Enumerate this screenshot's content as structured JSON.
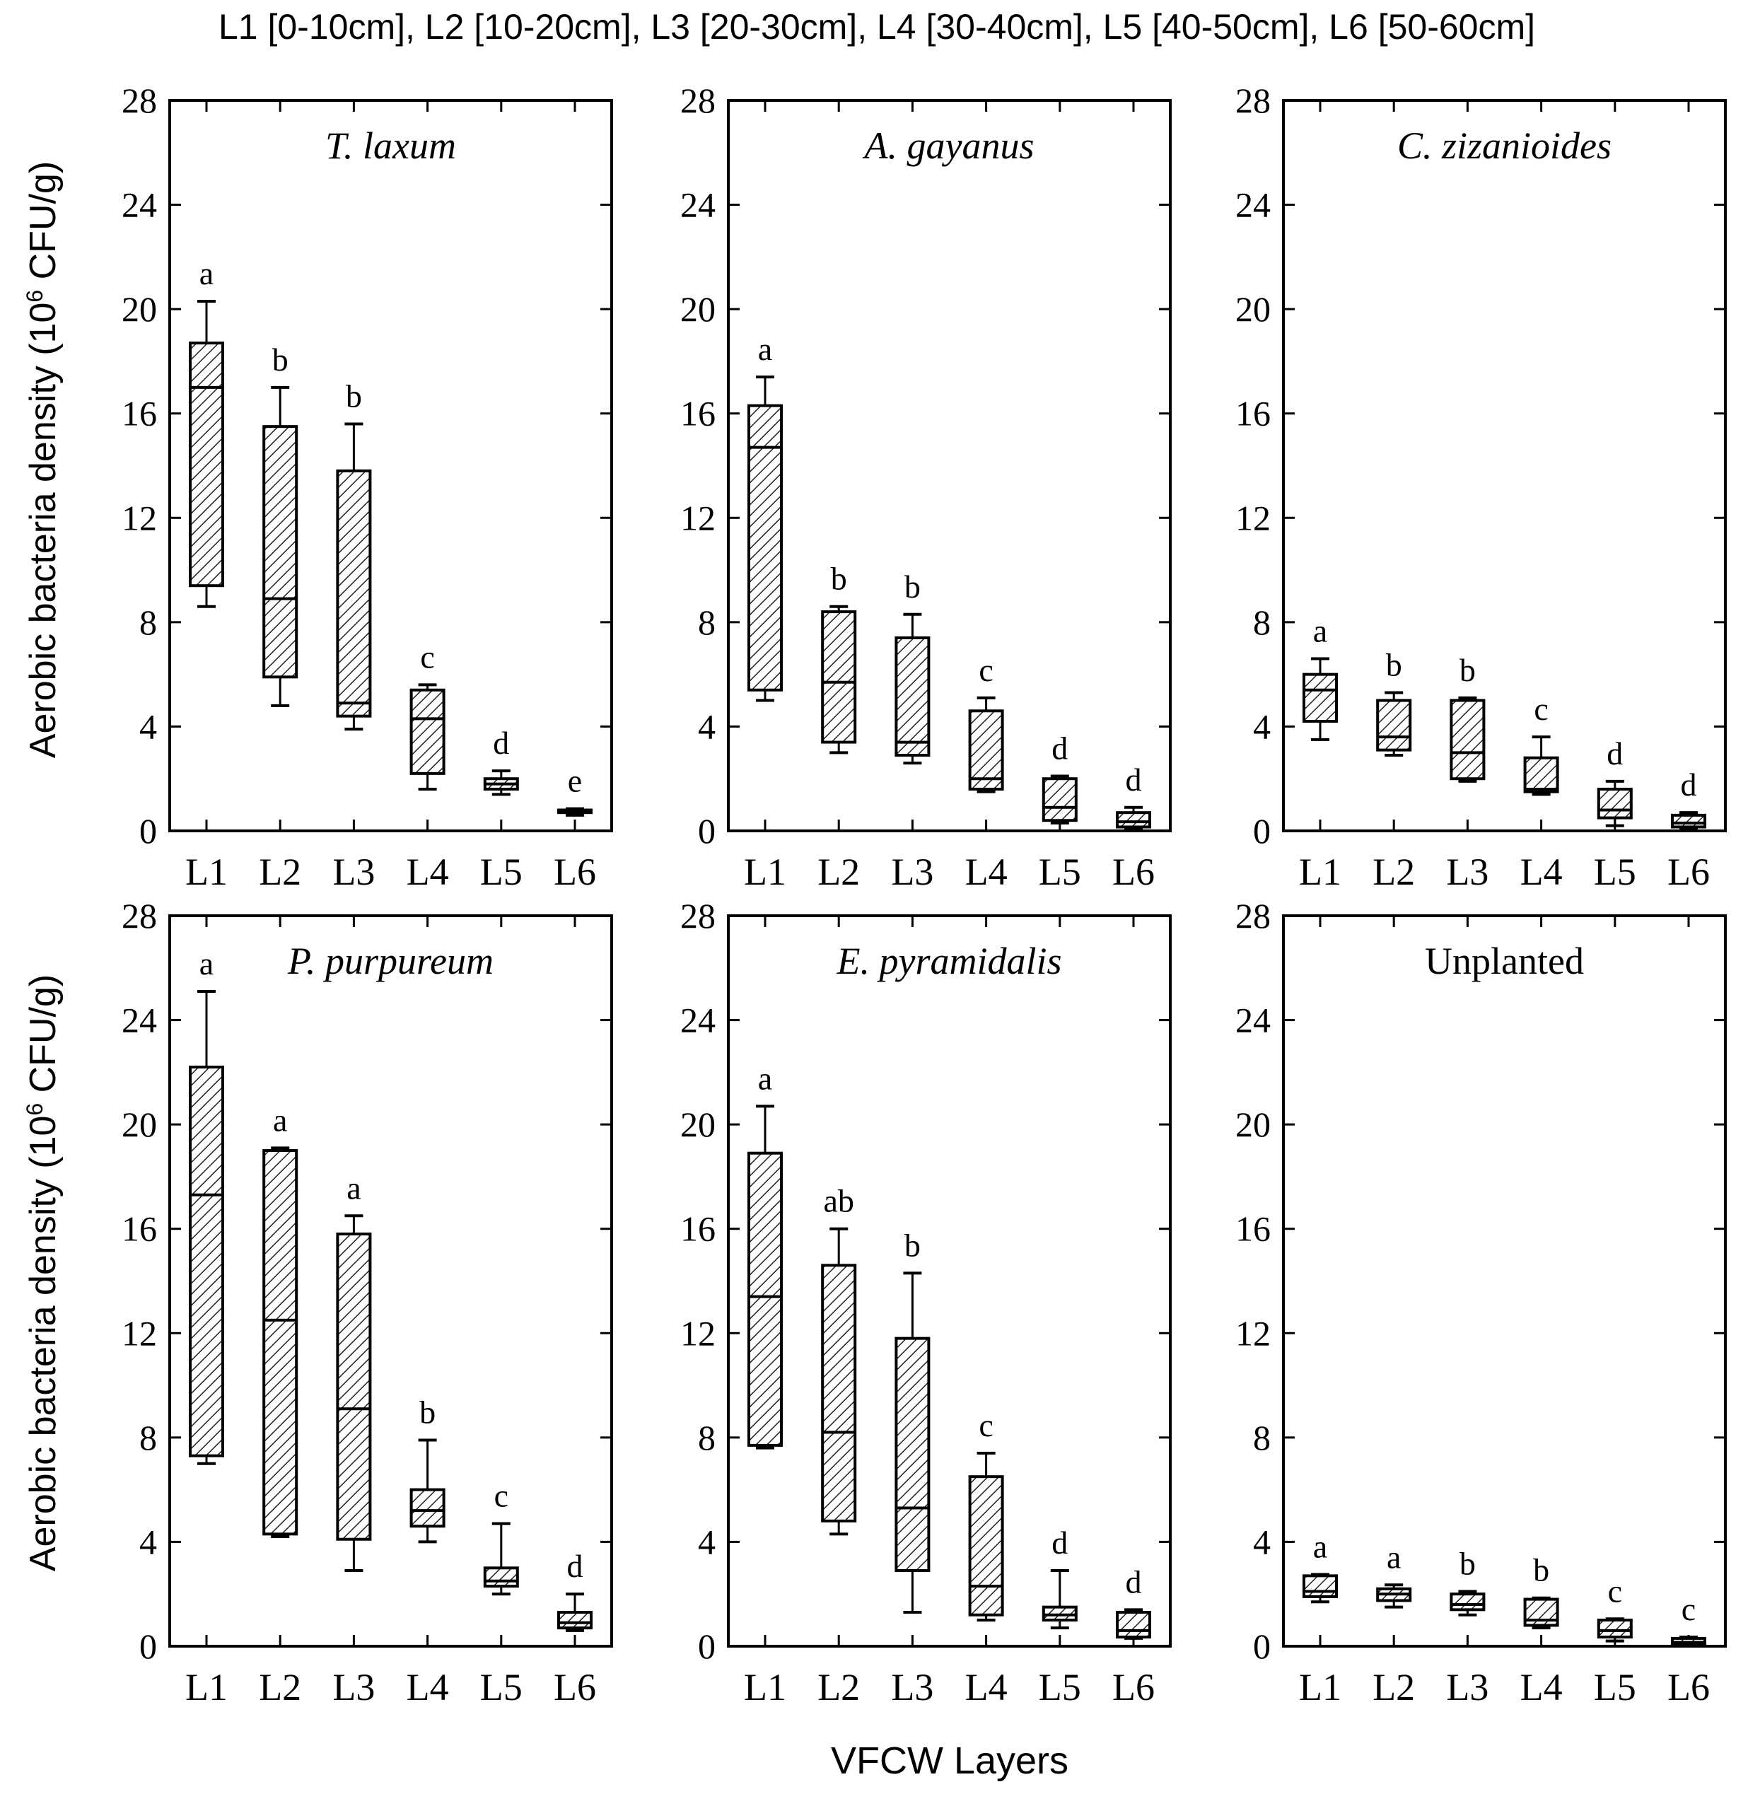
{
  "figure": {
    "header": "L1 [0-10cm], L2 [10-20cm], L3 [20-30cm], L4 [30-40cm], L5 [40-50cm], L6 [50-60cm]",
    "ylabel_main": "Aerobic bacteria density (10",
    "ylabel_sup": "6",
    "ylabel_tail": " CFU/g)",
    "xlabel": "VFCW Layers"
  },
  "colors": {
    "ink": "#000000",
    "background": "#ffffff",
    "hatch": "#000000"
  },
  "chart_data": [
    {
      "type": "box",
      "title": "T. laxum",
      "title_italic": true,
      "categories": [
        "L1",
        "L2",
        "L3",
        "L4",
        "L5",
        "L6"
      ],
      "yticks": [
        0,
        4,
        8,
        12,
        16,
        20,
        24,
        28
      ],
      "ylim": [
        0,
        28
      ],
      "boxes": [
        {
          "min": 8.6,
          "q1": 9.4,
          "median": 17.0,
          "q3": 18.7,
          "max": 20.3,
          "sig": "a"
        },
        {
          "min": 4.8,
          "q1": 5.9,
          "median": 8.9,
          "q3": 15.5,
          "max": 17.0,
          "sig": "b"
        },
        {
          "min": 3.9,
          "q1": 4.4,
          "median": 4.9,
          "q3": 13.8,
          "max": 15.6,
          "sig": "b"
        },
        {
          "min": 1.6,
          "q1": 2.2,
          "median": 4.3,
          "q3": 5.4,
          "max": 5.6,
          "sig": "c"
        },
        {
          "min": 1.4,
          "q1": 1.6,
          "median": 1.8,
          "q3": 2.0,
          "max": 2.3,
          "sig": "d"
        },
        {
          "min": 0.6,
          "q1": 0.7,
          "median": 0.75,
          "q3": 0.8,
          "max": 0.85,
          "sig": "e"
        }
      ]
    },
    {
      "type": "box",
      "title": "A. gayanus",
      "title_italic": true,
      "categories": [
        "L1",
        "L2",
        "L3",
        "L4",
        "L5",
        "L6"
      ],
      "yticks": [
        0,
        4,
        8,
        12,
        16,
        20,
        24,
        28
      ],
      "ylim": [
        0,
        28
      ],
      "boxes": [
        {
          "min": 5.0,
          "q1": 5.4,
          "median": 14.7,
          "q3": 16.3,
          "max": 17.4,
          "sig": "a"
        },
        {
          "min": 3.0,
          "q1": 3.4,
          "median": 5.7,
          "q3": 8.4,
          "max": 8.6,
          "sig": "b"
        },
        {
          "min": 2.6,
          "q1": 2.9,
          "median": 3.4,
          "q3": 7.4,
          "max": 8.3,
          "sig": "b"
        },
        {
          "min": 1.5,
          "q1": 1.6,
          "median": 2.0,
          "q3": 4.6,
          "max": 5.1,
          "sig": "c"
        },
        {
          "min": 0.3,
          "q1": 0.4,
          "median": 0.9,
          "q3": 2.0,
          "max": 2.1,
          "sig": "d"
        },
        {
          "min": 0.1,
          "q1": 0.15,
          "median": 0.35,
          "q3": 0.7,
          "max": 0.9,
          "sig": "d"
        }
      ]
    },
    {
      "type": "box",
      "title": "C. zizanioides",
      "title_italic": true,
      "categories": [
        "L1",
        "L2",
        "L3",
        "L4",
        "L5",
        "L6"
      ],
      "yticks": [
        0,
        4,
        8,
        12,
        16,
        20,
        24,
        28
      ],
      "ylim": [
        0,
        28
      ],
      "boxes": [
        {
          "min": 3.5,
          "q1": 4.2,
          "median": 5.4,
          "q3": 6.0,
          "max": 6.6,
          "sig": "a"
        },
        {
          "min": 2.9,
          "q1": 3.1,
          "median": 3.6,
          "q3": 5.0,
          "max": 5.3,
          "sig": "b"
        },
        {
          "min": 1.9,
          "q1": 2.0,
          "median": 3.0,
          "q3": 5.0,
          "max": 5.1,
          "sig": "b"
        },
        {
          "min": 1.4,
          "q1": 1.5,
          "median": 1.6,
          "q3": 2.8,
          "max": 3.6,
          "sig": "c"
        },
        {
          "min": 0.2,
          "q1": 0.5,
          "median": 0.8,
          "q3": 1.6,
          "max": 1.9,
          "sig": "d"
        },
        {
          "min": 0.1,
          "q1": 0.15,
          "median": 0.3,
          "q3": 0.6,
          "max": 0.7,
          "sig": "d"
        }
      ]
    },
    {
      "type": "box",
      "title": "P. purpureum",
      "title_italic": true,
      "categories": [
        "L1",
        "L2",
        "L3",
        "L4",
        "L5",
        "L6"
      ],
      "yticks": [
        0,
        4,
        8,
        12,
        16,
        20,
        24,
        28
      ],
      "ylim": [
        0,
        28
      ],
      "boxes": [
        {
          "min": 7.0,
          "q1": 7.3,
          "median": 17.3,
          "q3": 22.2,
          "max": 25.1,
          "sig": "a"
        },
        {
          "min": 4.2,
          "q1": 4.3,
          "median": 12.5,
          "q3": 19.0,
          "max": 19.1,
          "sig": "a"
        },
        {
          "min": 2.9,
          "q1": 4.1,
          "median": 9.1,
          "q3": 15.8,
          "max": 16.5,
          "sig": "a"
        },
        {
          "min": 4.0,
          "q1": 4.6,
          "median": 5.2,
          "q3": 6.0,
          "max": 7.9,
          "sig": "b"
        },
        {
          "min": 2.0,
          "q1": 2.3,
          "median": 2.5,
          "q3": 3.0,
          "max": 4.7,
          "sig": "c"
        },
        {
          "min": 0.6,
          "q1": 0.7,
          "median": 0.9,
          "q3": 1.3,
          "max": 2.0,
          "sig": "d"
        }
      ]
    },
    {
      "type": "box",
      "title": "E. pyramidalis",
      "title_italic": true,
      "categories": [
        "L1",
        "L2",
        "L3",
        "L4",
        "L5",
        "L6"
      ],
      "yticks": [
        0,
        4,
        8,
        12,
        16,
        20,
        24,
        28
      ],
      "ylim": [
        0,
        28
      ],
      "boxes": [
        {
          "min": 7.6,
          "q1": 7.7,
          "median": 13.4,
          "q3": 18.9,
          "max": 20.7,
          "sig": "a"
        },
        {
          "min": 4.3,
          "q1": 4.8,
          "median": 8.2,
          "q3": 14.6,
          "max": 16.0,
          "sig": "ab"
        },
        {
          "min": 1.3,
          "q1": 2.9,
          "median": 5.3,
          "q3": 11.8,
          "max": 14.3,
          "sig": "b"
        },
        {
          "min": 1.0,
          "q1": 1.2,
          "median": 2.3,
          "q3": 6.5,
          "max": 7.4,
          "sig": "c"
        },
        {
          "min": 0.7,
          "q1": 1.0,
          "median": 1.2,
          "q3": 1.5,
          "max": 2.9,
          "sig": "d"
        },
        {
          "min": 0.3,
          "q1": 0.35,
          "median": 0.6,
          "q3": 1.3,
          "max": 1.4,
          "sig": "d"
        }
      ]
    },
    {
      "type": "box",
      "title": "Unplanted",
      "title_italic": false,
      "categories": [
        "L1",
        "L2",
        "L3",
        "L4",
        "L5",
        "L6"
      ],
      "yticks": [
        0,
        4,
        8,
        12,
        16,
        20,
        24,
        28
      ],
      "ylim": [
        0,
        28
      ],
      "boxes": [
        {
          "min": 1.7,
          "q1": 1.9,
          "median": 2.1,
          "q3": 2.7,
          "max": 2.75,
          "sig": "a"
        },
        {
          "min": 1.5,
          "q1": 1.75,
          "median": 2.0,
          "q3": 2.2,
          "max": 2.35,
          "sig": "a"
        },
        {
          "min": 1.2,
          "q1": 1.4,
          "median": 1.6,
          "q3": 2.0,
          "max": 2.1,
          "sig": "b"
        },
        {
          "min": 0.7,
          "q1": 0.8,
          "median": 1.0,
          "q3": 1.8,
          "max": 1.85,
          "sig": "b"
        },
        {
          "min": 0.2,
          "q1": 0.35,
          "median": 0.6,
          "q3": 1.0,
          "max": 1.05,
          "sig": "c"
        },
        {
          "min": 0.05,
          "q1": 0.1,
          "median": 0.15,
          "q3": 0.3,
          "max": 0.35,
          "sig": "c"
        }
      ]
    }
  ]
}
